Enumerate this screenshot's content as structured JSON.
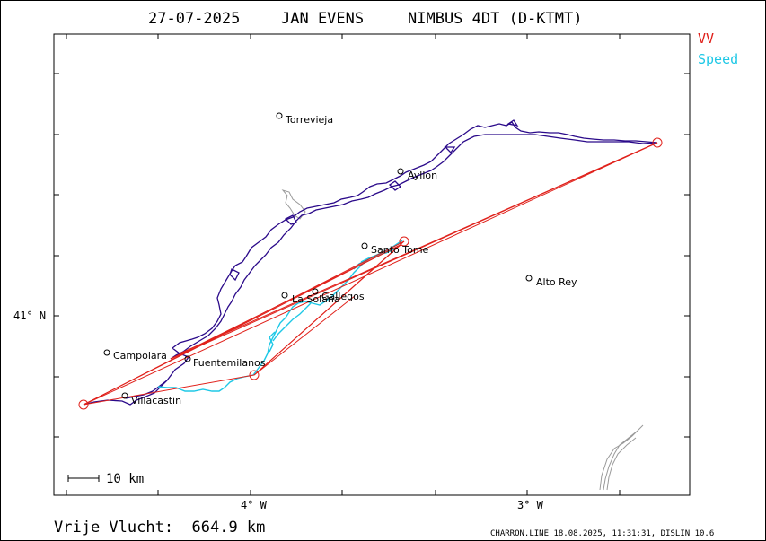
{
  "header": {
    "date": "27-07-2025",
    "pilot": "JAN EVENS",
    "glider": "NIMBUS 4DT (D-KTMT)"
  },
  "legend": {
    "vv_label": "VV",
    "vv_color": "#e0211b",
    "speed_label": "Speed",
    "speed_color": "#1ec8e6"
  },
  "axes": {
    "lat_label": "41° N",
    "lon_labels": [
      "4° W",
      "3° W"
    ]
  },
  "scale_bar": {
    "label": "10 km"
  },
  "places": [
    {
      "name": "Torrevieja"
    },
    {
      "name": "Ayllon"
    },
    {
      "name": "Santo Tome"
    },
    {
      "name": "Alto Rey"
    },
    {
      "name": "La Solana"
    },
    {
      "name": "Gallegos"
    },
    {
      "name": "Campolara"
    },
    {
      "name": "Fuentemilanos"
    },
    {
      "name": "Villacastin"
    }
  ],
  "track_color": "#2b0a8a",
  "coast_color": "#9a9a9a",
  "footer": {
    "distance_text": "Vrije Vlucht:  664.9 km",
    "credit": "CHARRON.LINE 18.08.2025, 11:31:31, DISLIN 10.6"
  }
}
